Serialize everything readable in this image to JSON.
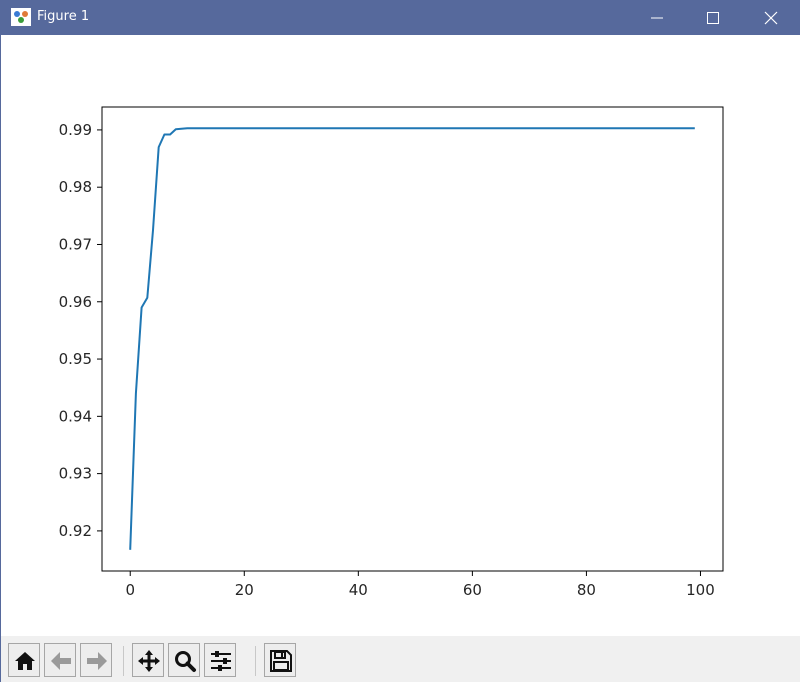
{
  "window": {
    "title": "Figure 1",
    "titlebar_color": "#56699c",
    "controls": [
      "minimize-icon",
      "maximize-icon",
      "close-icon"
    ]
  },
  "toolbar": {
    "buttons": [
      "home-icon",
      "back-arrow-icon",
      "forward-arrow-icon",
      "pan-icon",
      "zoom-icon",
      "configure-subplots-icon",
      "save-icon"
    ]
  },
  "chart_data": {
    "type": "line",
    "title": "",
    "xlabel": "",
    "ylabel": "",
    "xlim": [
      -4.95,
      103.95
    ],
    "ylim": [
      0.913,
      0.994
    ],
    "xticks": [
      0,
      20,
      40,
      60,
      80,
      100
    ],
    "xtick_labels": [
      "0",
      "20",
      "40",
      "60",
      "80",
      "100"
    ],
    "yticks": [
      0.92,
      0.93,
      0.94,
      0.95,
      0.96,
      0.97,
      0.98,
      0.99
    ],
    "ytick_labels": [
      "0.92",
      "0.93",
      "0.94",
      "0.95",
      "0.96",
      "0.97",
      "0.98",
      "0.99"
    ],
    "grid": false,
    "line_color": "#1f77b4",
    "series": [
      {
        "x": [
          0,
          1,
          2,
          3,
          4,
          5,
          6,
          7,
          8,
          9,
          10,
          20,
          40,
          60,
          80,
          99
        ],
        "y": [
          0.9167,
          0.944,
          0.959,
          0.9607,
          0.9725,
          0.987,
          0.9892,
          0.9892,
          0.9901,
          0.9902,
          0.9903,
          0.9903,
          0.9903,
          0.9903,
          0.9903,
          0.9903
        ]
      }
    ]
  }
}
